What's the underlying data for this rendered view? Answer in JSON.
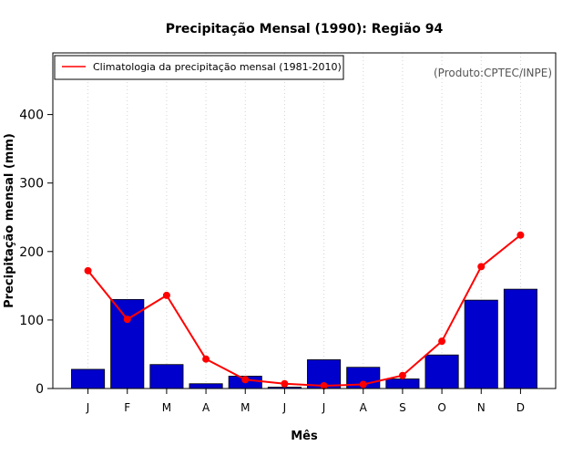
{
  "chart_data": {
    "type": "bar",
    "title": "Precipitação Mensal (1990): Região 94",
    "xlabel": "Mês",
    "ylabel": "Precipitação mensal (mm)",
    "credit": "(Produto:CPTEC/INPE)",
    "categories": [
      "J",
      "F",
      "M",
      "A",
      "M",
      "J",
      "J",
      "A",
      "S",
      "O",
      "N",
      "D"
    ],
    "ylim": [
      0,
      490
    ],
    "yticks": [
      0,
      100,
      200,
      300,
      400
    ],
    "grid": "vertical dotted",
    "series": [
      {
        "name": "Precipitação mensal (1990)",
        "kind": "bar",
        "color": "#0000cc",
        "values": [
          28,
          130,
          35,
          7,
          18,
          2,
          42,
          31,
          14,
          49,
          129,
          145
        ]
      },
      {
        "name": "Climatologia da precipitação mensal (1981-2010)",
        "kind": "line",
        "color": "#ff0000",
        "values": [
          172,
          101,
          136,
          43,
          13,
          7,
          4,
          6,
          19,
          69,
          178,
          224
        ]
      }
    ],
    "legend": {
      "position": "top-left",
      "label": "Climatologia da precipitação mensal (1981-2010)"
    }
  }
}
